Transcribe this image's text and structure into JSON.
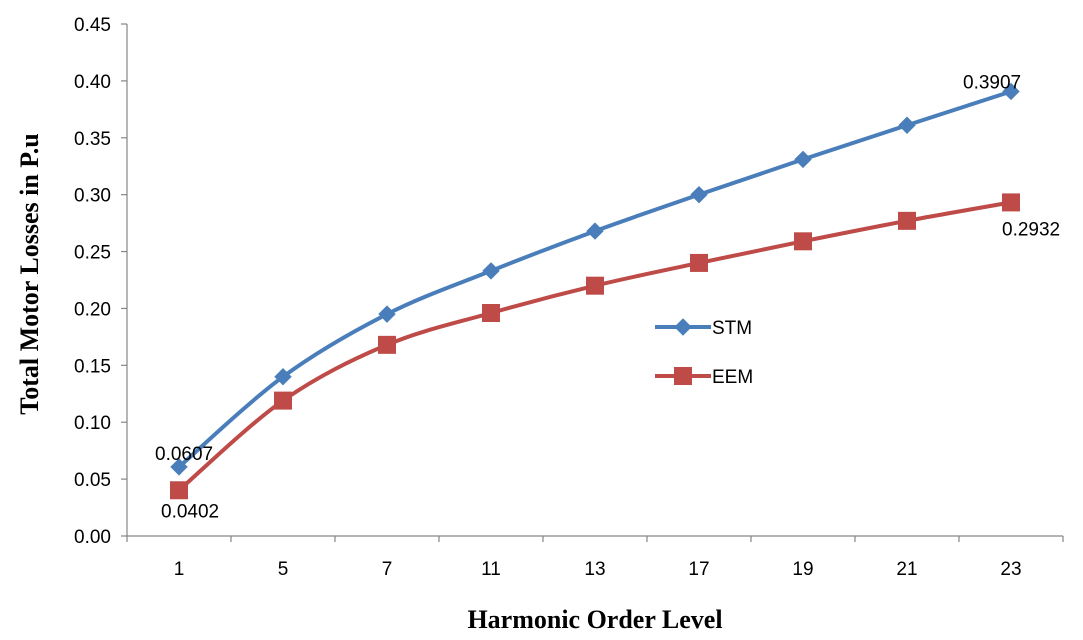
{
  "chart_data": {
    "type": "line",
    "title": "",
    "xlabel": "Harmonic Order Level",
    "ylabel": "Total Motor Losses in P.u",
    "categories": [
      "1",
      "5",
      "7",
      "11",
      "13",
      "17",
      "19",
      "21",
      "23"
    ],
    "ylim": [
      0,
      0.45
    ],
    "yticks": [
      "0.00",
      "0.05",
      "0.10",
      "0.15",
      "0.20",
      "0.25",
      "0.30",
      "0.35",
      "0.40",
      "0.45"
    ],
    "grid": false,
    "legend_position": "center-right",
    "series": [
      {
        "name": "STM",
        "color": "#4a7ebb",
        "marker": "diamond",
        "values": [
          0.0607,
          0.14,
          0.195,
          0.233,
          0.268,
          0.3,
          0.331,
          0.361,
          0.3907
        ]
      },
      {
        "name": "EEM",
        "color": "#be4b48",
        "marker": "square",
        "values": [
          0.0402,
          0.119,
          0.168,
          0.196,
          0.22,
          0.24,
          0.259,
          0.277,
          0.2932
        ]
      }
    ],
    "annotations": [
      {
        "series": 0,
        "index": 0,
        "text": "0.0607"
      },
      {
        "series": 1,
        "index": 0,
        "text": "0.0402"
      },
      {
        "series": 0,
        "index": 8,
        "text": "0.3907"
      },
      {
        "series": 1,
        "index": 8,
        "text": "0.2932"
      }
    ]
  }
}
